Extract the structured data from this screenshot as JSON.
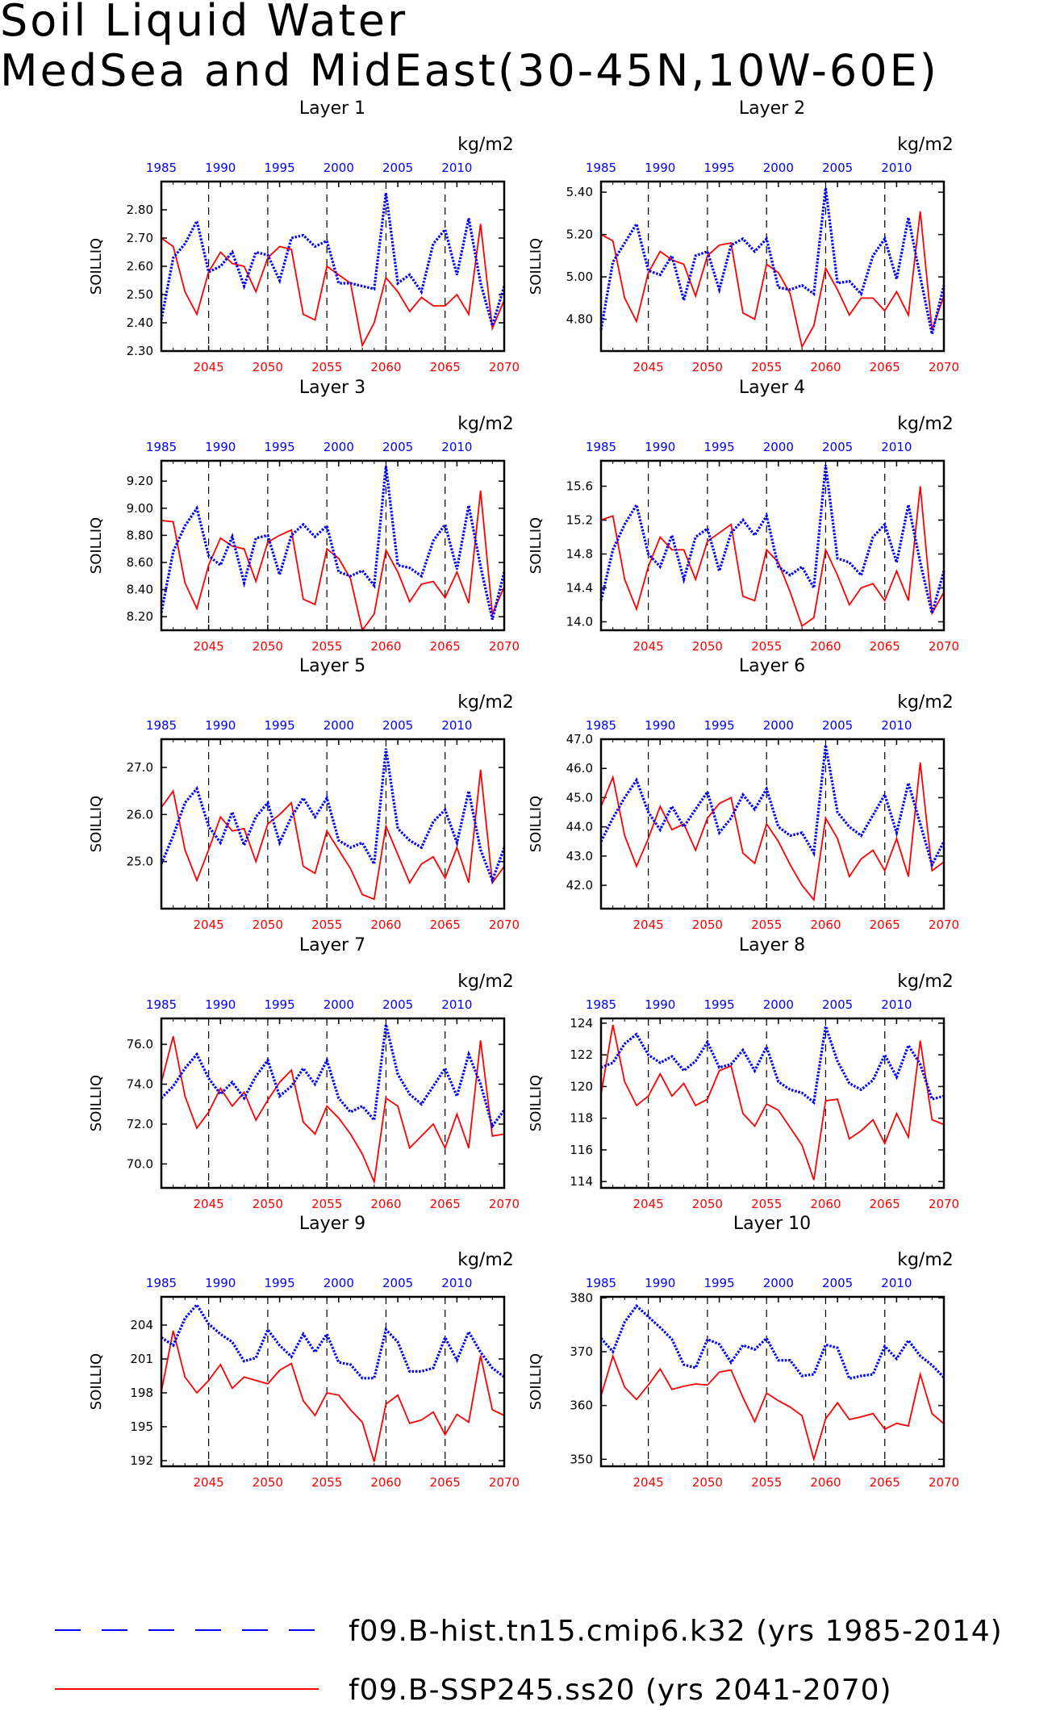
{
  "title": "Soil Liquid Water",
  "subtitle": "MedSea and MidEast(30-45N,10W-60E)",
  "chart_data": {
    "type": "line",
    "layout": "5x2 panel grid",
    "ylabel": "SOILLIQ",
    "units": "kg/m2",
    "x_top_axis": {
      "ticks": [
        1985,
        1990,
        1995,
        2000,
        2005,
        2010
      ],
      "color": "#0000ff",
      "range": [
        1985,
        2014
      ]
    },
    "x_bottom_axis": {
      "ticks": [
        2045,
        2050,
        2055,
        2060,
        2065,
        2070
      ],
      "color": "#ff0000",
      "range": [
        2041,
        2070
      ]
    },
    "vertical_dashed_lines_at": [
      2045,
      2050,
      2055,
      2060,
      2065
    ],
    "legend": {
      "placement": "bottom",
      "entries": [
        {
          "label": "f09.B-hist.tn15.cmip6.k32 (yrs 1985-2014)",
          "color": "#0000ff",
          "style": "dashed"
        },
        {
          "label": "f09.B-SSP245.ss20 (yrs 2041-2070)",
          "color": "#ff0000",
          "style": "solid"
        }
      ]
    },
    "panels": [
      {
        "title": "Layer 1",
        "ylim": [
          2.3,
          2.9
        ],
        "yticks": [
          "2.30",
          "2.40",
          "2.50",
          "2.60",
          "2.70",
          "2.80"
        ],
        "hist": [
          2.41,
          2.63,
          2.68,
          2.76,
          2.58,
          2.6,
          2.65,
          2.53,
          2.65,
          2.64,
          2.55,
          2.7,
          2.71,
          2.67,
          2.69,
          2.54,
          2.54,
          2.53,
          2.52,
          2.86,
          2.54,
          2.57,
          2.51,
          2.68,
          2.73,
          2.57,
          2.77,
          2.54,
          2.39,
          2.53
        ],
        "ssp": [
          2.7,
          2.67,
          2.51,
          2.43,
          2.58,
          2.65,
          2.61,
          2.6,
          2.51,
          2.63,
          2.67,
          2.66,
          2.43,
          2.41,
          2.6,
          2.57,
          2.54,
          2.32,
          2.4,
          2.56,
          2.51,
          2.44,
          2.49,
          2.46,
          2.46,
          2.5,
          2.43,
          2.75,
          2.38,
          2.48
        ]
      },
      {
        "title": "Layer 2",
        "ylim": [
          4.65,
          5.45
        ],
        "yticks": [
          "4.80",
          "5.00",
          "5.20",
          "5.40"
        ],
        "hist": [
          4.75,
          5.07,
          5.16,
          5.25,
          5.03,
          5.01,
          5.1,
          4.89,
          5.1,
          5.12,
          4.94,
          5.15,
          5.18,
          5.12,
          5.18,
          4.95,
          4.94,
          4.96,
          4.92,
          5.42,
          4.97,
          4.98,
          4.92,
          5.1,
          5.18,
          4.99,
          5.28,
          5.0,
          4.73,
          4.96
        ],
        "ssp": [
          5.2,
          5.17,
          4.9,
          4.79,
          5.02,
          5.12,
          5.08,
          5.06,
          4.91,
          5.1,
          5.15,
          5.16,
          4.83,
          4.8,
          5.06,
          5.02,
          4.92,
          4.67,
          4.77,
          5.04,
          4.94,
          4.82,
          4.9,
          4.9,
          4.84,
          4.93,
          4.82,
          5.31,
          4.75,
          4.91
        ]
      },
      {
        "title": "Layer 3",
        "ylim": [
          8.1,
          9.35
        ],
        "yticks": [
          "8.20",
          "8.40",
          "8.60",
          "8.80",
          "9.00",
          "9.20"
        ],
        "hist": [
          8.23,
          8.68,
          8.87,
          9.0,
          8.65,
          8.58,
          8.79,
          8.45,
          8.78,
          8.8,
          8.51,
          8.8,
          8.88,
          8.79,
          8.87,
          8.53,
          8.5,
          8.54,
          8.43,
          9.31,
          8.58,
          8.56,
          8.5,
          8.76,
          8.88,
          8.55,
          9.02,
          8.57,
          8.18,
          8.53
        ],
        "ssp": [
          8.91,
          8.9,
          8.45,
          8.26,
          8.58,
          8.78,
          8.72,
          8.7,
          8.46,
          8.75,
          8.8,
          8.84,
          8.33,
          8.29,
          8.7,
          8.63,
          8.48,
          8.1,
          8.22,
          8.69,
          8.53,
          8.31,
          8.44,
          8.46,
          8.34,
          8.53,
          8.3,
          9.13,
          8.22,
          8.42
        ]
      },
      {
        "title": "Layer 4",
        "ylim": [
          13.9,
          15.9
        ],
        "yticks": [
          "14.0",
          "14.4",
          "14.8",
          "15.2",
          "15.6"
        ],
        "hist": [
          14.25,
          14.85,
          15.15,
          15.38,
          14.8,
          14.65,
          15.02,
          14.5,
          15.0,
          15.1,
          14.6,
          15.05,
          15.2,
          15.02,
          15.25,
          14.65,
          14.55,
          14.65,
          14.4,
          15.85,
          14.75,
          14.7,
          14.55,
          15.0,
          15.15,
          14.7,
          15.38,
          14.7,
          14.1,
          14.6
        ],
        "ssp": [
          15.2,
          15.25,
          14.5,
          14.15,
          14.65,
          15.0,
          14.85,
          14.85,
          14.5,
          14.95,
          15.05,
          15.15,
          14.3,
          14.25,
          14.85,
          14.7,
          14.35,
          13.95,
          14.05,
          14.85,
          14.55,
          14.2,
          14.4,
          14.45,
          14.25,
          14.6,
          14.25,
          15.6,
          14.1,
          14.35
        ]
      },
      {
        "title": "Layer 5",
        "ylim": [
          24.0,
          27.6
        ],
        "yticks": [
          "25.0",
          "26.0",
          "27.0"
        ],
        "hist": [
          24.95,
          25.55,
          26.25,
          26.55,
          25.75,
          25.4,
          26.05,
          25.35,
          25.95,
          26.25,
          25.4,
          25.95,
          26.35,
          25.95,
          26.35,
          25.45,
          25.3,
          25.4,
          24.95,
          27.4,
          25.7,
          25.45,
          25.3,
          25.85,
          26.1,
          25.4,
          26.5,
          25.25,
          24.6,
          25.3
        ],
        "ssp": [
          26.15,
          26.5,
          25.25,
          24.6,
          25.25,
          25.95,
          25.65,
          25.7,
          25.0,
          25.8,
          26.0,
          26.25,
          24.9,
          24.75,
          25.65,
          25.25,
          24.85,
          24.3,
          24.2,
          25.75,
          25.15,
          24.55,
          24.95,
          25.1,
          24.65,
          25.3,
          24.55,
          26.95,
          24.55,
          24.9
        ]
      },
      {
        "title": "Layer 6",
        "ylim": [
          41.2,
          47.0
        ],
        "yticks": [
          "42.0",
          "43.0",
          "44.0",
          "45.0",
          "46.0",
          "47.0"
        ],
        "hist": [
          43.5,
          44.3,
          45.0,
          45.6,
          44.5,
          43.9,
          44.7,
          44.0,
          44.6,
          45.2,
          43.8,
          44.3,
          45.1,
          44.6,
          45.3,
          44.0,
          43.7,
          43.8,
          43.1,
          46.8,
          44.5,
          44.0,
          43.7,
          44.4,
          45.1,
          43.8,
          45.5,
          44.1,
          42.7,
          43.5
        ],
        "ssp": [
          44.7,
          45.7,
          43.7,
          42.65,
          43.6,
          44.7,
          43.9,
          44.1,
          43.2,
          44.3,
          44.8,
          45.0,
          43.1,
          42.75,
          44.1,
          43.5,
          42.7,
          42.0,
          41.5,
          44.3,
          43.6,
          42.3,
          42.9,
          43.2,
          42.5,
          43.6,
          42.3,
          46.2,
          42.5,
          42.8
        ]
      },
      {
        "title": "Layer 7",
        "ylim": [
          68.8,
          77.3
        ],
        "yticks": [
          "70.0",
          "72.0",
          "74.0",
          "76.0"
        ],
        "hist": [
          73.3,
          73.9,
          74.8,
          75.5,
          74.3,
          73.5,
          74.1,
          73.3,
          74.4,
          75.2,
          73.4,
          73.9,
          74.8,
          74.0,
          75.2,
          73.3,
          72.6,
          72.9,
          72.2,
          77.0,
          74.5,
          73.5,
          73.0,
          73.9,
          74.8,
          73.4,
          75.5,
          74.0,
          71.9,
          72.7
        ],
        "ssp": [
          74.1,
          76.4,
          73.4,
          71.8,
          72.6,
          73.8,
          72.9,
          73.6,
          72.2,
          73.2,
          74.1,
          74.7,
          72.1,
          71.5,
          72.9,
          72.3,
          71.5,
          70.5,
          69.1,
          73.3,
          72.9,
          70.8,
          71.4,
          72.0,
          70.8,
          72.5,
          70.8,
          76.2,
          71.4,
          71.5
        ]
      },
      {
        "title": "Layer 8",
        "ylim": [
          113.6,
          124.3
        ],
        "yticks": [
          "114",
          "116",
          "118",
          "120",
          "122",
          "124"
        ],
        "hist": [
          121.2,
          121.5,
          122.7,
          123.3,
          122.0,
          121.5,
          121.9,
          121.0,
          121.6,
          122.8,
          121.2,
          121.4,
          122.3,
          121.0,
          122.5,
          120.3,
          119.8,
          119.6,
          119.0,
          123.8,
          121.6,
          120.2,
          119.8,
          120.4,
          122.0,
          120.6,
          122.6,
          121.4,
          119.2,
          119.4
        ],
        "ssp": [
          119.5,
          123.9,
          120.3,
          118.8,
          119.4,
          120.8,
          119.4,
          120.2,
          118.8,
          119.2,
          121.0,
          121.3,
          118.3,
          117.5,
          118.9,
          118.5,
          117.4,
          116.3,
          114.1,
          119.1,
          119.2,
          116.7,
          117.2,
          117.9,
          116.4,
          118.3,
          116.8,
          122.9,
          117.9,
          117.6
        ]
      },
      {
        "title": "Layer 9",
        "ylim": [
          191.5,
          206.5
        ],
        "yticks": [
          "192",
          "195",
          "198",
          "201",
          "204"
        ],
        "hist": [
          202.9,
          202.2,
          204.6,
          205.8,
          204.1,
          203.2,
          202.5,
          200.8,
          201.1,
          203.6,
          202.2,
          201.2,
          203.2,
          201.6,
          203.2,
          200.7,
          200.5,
          199.3,
          199.3,
          203.6,
          202.5,
          199.9,
          199.9,
          200.2,
          202.9,
          200.9,
          203.4,
          201.6,
          200.2,
          199.4
        ],
        "ssp": [
          198.1,
          203.5,
          199.4,
          198.0,
          199.1,
          200.5,
          198.4,
          199.4,
          199.1,
          198.8,
          200.0,
          200.6,
          197.3,
          196.0,
          198.0,
          197.8,
          196.5,
          195.4,
          191.9,
          197.0,
          197.8,
          195.3,
          195.6,
          196.3,
          194.3,
          196.1,
          195.4,
          201.3,
          196.5,
          196.0
        ]
      },
      {
        "title": "Layer 10",
        "ylim": [
          348.7,
          380.2
        ],
        "yticks": [
          "350",
          "360",
          "370",
          "380"
        ],
        "hist": [
          372.5,
          370.0,
          375.5,
          378.5,
          376.5,
          374.5,
          372.3,
          367.6,
          367.0,
          372.3,
          371.4,
          368.0,
          371.2,
          370.4,
          372.5,
          368.4,
          368.4,
          365.5,
          365.8,
          371.3,
          370.7,
          365.0,
          365.5,
          365.8,
          371.0,
          368.7,
          372.1,
          369.2,
          367.5,
          365.2
        ],
        "ssp": [
          361.8,
          369.2,
          363.4,
          361.1,
          363.8,
          366.8,
          363.0,
          363.6,
          364.0,
          363.8,
          366.2,
          366.6,
          361.5,
          357.0,
          362.3,
          360.9,
          359.7,
          358.1,
          350.0,
          357.5,
          360.5,
          357.4,
          357.9,
          358.5,
          355.6,
          356.7,
          356.2,
          365.8,
          358.5,
          356.6
        ]
      }
    ]
  }
}
